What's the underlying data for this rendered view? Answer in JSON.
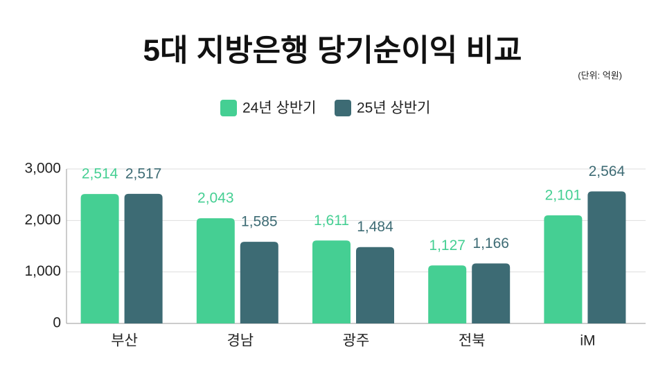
{
  "chart_data": {
    "type": "bar",
    "title": "5대 지방은행 당기순이익 비교",
    "subtitle": "(단위: 억원)",
    "categories": [
      "부산",
      "경남",
      "광주",
      "전북",
      "iM"
    ],
    "series": [
      {
        "name": "24년 상반기",
        "color": "#45cf93",
        "values": [
          2514,
          2043,
          1611,
          1127,
          2101
        ],
        "value_labels": [
          "2,514",
          "2,043",
          "1,611",
          "1,127",
          "2,101"
        ]
      },
      {
        "name": "25년 상반기",
        "color": "#3d6b74",
        "values": [
          2517,
          1585,
          1484,
          1166,
          2564
        ],
        "value_labels": [
          "2,517",
          "1,585",
          "1,484",
          "1,166",
          "2,564"
        ]
      }
    ],
    "ylim": [
      0,
      3000
    ],
    "yticks": [
      0,
      {
        "value": 1000,
        "label": "1,000"
      },
      {
        "value": 2000,
        "label": "2,000"
      },
      {
        "value": 3000,
        "label": "3,000"
      }
    ],
    "grid": true,
    "legend": "top"
  }
}
